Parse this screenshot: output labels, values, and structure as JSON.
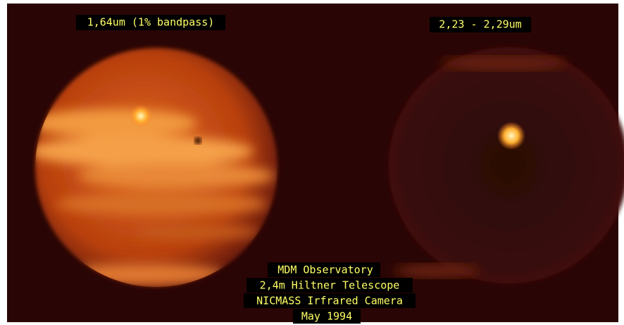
{
  "labels": {
    "left_filter": "1,64um (1% bandpass)",
    "right_filter": "2,23 - 2,29um"
  },
  "credits": [
    "MDM Observatory",
    "2,4m Hiltner Telescope",
    "NICMASS Irfrared Camera",
    "May 1994"
  ]
}
